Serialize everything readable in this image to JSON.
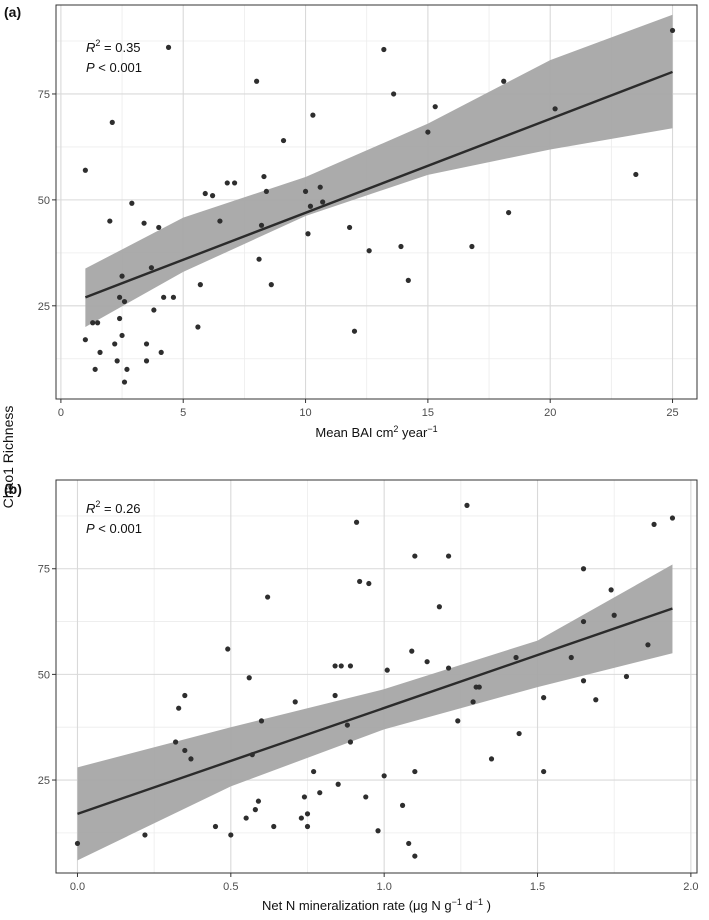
{
  "ylabel_shared": "Chao1 Richness",
  "colors": {
    "point": "#2e2e2e",
    "line": "#2b2b2b",
    "band": "#a6a6a6",
    "grid_major": "#d9d9d9",
    "grid_minor": "#ececec",
    "panel_border": "#333333"
  },
  "chart_data": [
    {
      "type": "scatter",
      "panel_label": "(a)",
      "stats": {
        "r2": "= 0.35",
        "p": "< 0.001",
        "r2_symbol": "R",
        "r2_sup": "2",
        "p_symbol": "P"
      },
      "xlabel": "Mean BAI cm",
      "xlabel_sup": "2",
      "xlabel_tail": " year",
      "xlabel_tail_sup": "−1",
      "xlim": [
        -0.2,
        26.0
      ],
      "ylim": [
        3,
        96
      ],
      "xticks": [
        0,
        5,
        10,
        15,
        20,
        25
      ],
      "xtick_labels": [
        "0",
        "5",
        "10",
        "15",
        "20",
        "25"
      ],
      "yticks": [
        25,
        50,
        75
      ],
      "ytick_labels": [
        "25",
        "50",
        "75"
      ],
      "fit": {
        "x0": 1.0,
        "y0": 27.0,
        "x1": 25.0,
        "y1": 80.2
      },
      "ci_band": [
        [
          1.0,
          20.0,
          33.8
        ],
        [
          5.0,
          33.0,
          45.8
        ],
        [
          10.0,
          46.2,
          55.4
        ],
        [
          15.0,
          55.9,
          68.0
        ],
        [
          20.0,
          61.9,
          83.0
        ],
        [
          25.0,
          66.9,
          93.7
        ]
      ],
      "points": [
        [
          1.0,
          57.0
        ],
        [
          1.0,
          17.0
        ],
        [
          1.3,
          21.0
        ],
        [
          1.4,
          10.0
        ],
        [
          1.5,
          21.0
        ],
        [
          1.6,
          14.0
        ],
        [
          2.0,
          45.0
        ],
        [
          2.1,
          68.3
        ],
        [
          2.2,
          16.0
        ],
        [
          2.3,
          12.0
        ],
        [
          2.4,
          22.0
        ],
        [
          2.4,
          27.0
        ],
        [
          2.5,
          32.0
        ],
        [
          2.5,
          18.0
        ],
        [
          2.6,
          26.0
        ],
        [
          2.6,
          7.0
        ],
        [
          2.7,
          10.0
        ],
        [
          2.9,
          49.2
        ],
        [
          3.4,
          44.5
        ],
        [
          3.5,
          16.0
        ],
        [
          3.5,
          12.0
        ],
        [
          3.7,
          34.0
        ],
        [
          3.8,
          24.0
        ],
        [
          4.0,
          43.5
        ],
        [
          4.1,
          14.0
        ],
        [
          4.2,
          27.0
        ],
        [
          4.4,
          86.0
        ],
        [
          4.6,
          27.0
        ],
        [
          5.6,
          20.0
        ],
        [
          5.7,
          30.0
        ],
        [
          5.9,
          51.5
        ],
        [
          6.2,
          51.0
        ],
        [
          6.5,
          45.0
        ],
        [
          6.8,
          54.0
        ],
        [
          7.1,
          54.0
        ],
        [
          8.0,
          78.0
        ],
        [
          8.1,
          36.0
        ],
        [
          8.2,
          44.0
        ],
        [
          8.3,
          55.5
        ],
        [
          8.4,
          52.0
        ],
        [
          8.6,
          30.0
        ],
        [
          9.1,
          64.0
        ],
        [
          10.0,
          52.0
        ],
        [
          10.1,
          42.0
        ],
        [
          10.2,
          48.5
        ],
        [
          10.3,
          70.0
        ],
        [
          10.6,
          53.0
        ],
        [
          10.7,
          49.5
        ],
        [
          11.8,
          43.5
        ],
        [
          12.0,
          19.0
        ],
        [
          12.6,
          38.0
        ],
        [
          13.2,
          85.5
        ],
        [
          13.6,
          75.0
        ],
        [
          13.9,
          39.0
        ],
        [
          14.2,
          31.0
        ],
        [
          15.0,
          66.0
        ],
        [
          15.3,
          72.0
        ],
        [
          16.8,
          39.0
        ],
        [
          18.1,
          78.0
        ],
        [
          18.3,
          47.0
        ],
        [
          20.2,
          71.5
        ],
        [
          23.5,
          56.0
        ],
        [
          25.0,
          90.0
        ]
      ]
    },
    {
      "type": "scatter",
      "panel_label": "(b)",
      "stats": {
        "r2": "= 0.26",
        "p": "< 0.001",
        "r2_symbol": "R",
        "r2_sup": "2",
        "p_symbol": "P"
      },
      "xlabel": "Net N mineralization rate (μg N g",
      "xlabel_sup": "−1",
      "xlabel_tail": " d",
      "xlabel_tail_sup": "−1",
      "xlabel_end": " )",
      "xlim": [
        -0.07,
        2.02
      ],
      "ylim": [
        3,
        96
      ],
      "xticks": [
        0.0,
        0.5,
        1.0,
        1.5,
        2.0
      ],
      "xtick_labels": [
        "0.0",
        "0.5",
        "1.0",
        "1.5",
        "2.0"
      ],
      "yticks": [
        25,
        50,
        75
      ],
      "ytick_labels": [
        "25",
        "50",
        "75"
      ],
      "fit": {
        "x0": 0.0,
        "y0": 17.0,
        "x1": 1.94,
        "y1": 65.6
      },
      "ci_band": [
        [
          0.0,
          6.0,
          28.0
        ],
        [
          0.5,
          23.5,
          37.5
        ],
        [
          1.0,
          37.0,
          46.5
        ],
        [
          1.5,
          47.0,
          58.0
        ],
        [
          1.94,
          55.0,
          76.0
        ]
      ],
      "points": [
        [
          0.0,
          10.0
        ],
        [
          0.22,
          12.0
        ],
        [
          0.32,
          34.0
        ],
        [
          0.33,
          42.0
        ],
        [
          0.35,
          45.0
        ],
        [
          0.35,
          32.0
        ],
        [
          0.37,
          30.0
        ],
        [
          0.45,
          14.0
        ],
        [
          0.49,
          56.0
        ],
        [
          0.5,
          12.0
        ],
        [
          0.55,
          16.0
        ],
        [
          0.56,
          49.2
        ],
        [
          0.57,
          31.0
        ],
        [
          0.58,
          18.0
        ],
        [
          0.59,
          20.0
        ],
        [
          0.6,
          39.0
        ],
        [
          0.62,
          68.3
        ],
        [
          0.64,
          14.0
        ],
        [
          0.71,
          43.5
        ],
        [
          0.73,
          16.0
        ],
        [
          0.74,
          21.0
        ],
        [
          0.75,
          14.0
        ],
        [
          0.75,
          17.0
        ],
        [
          0.77,
          27.0
        ],
        [
          0.79,
          22.0
        ],
        [
          0.84,
          52.0
        ],
        [
          0.84,
          45.0
        ],
        [
          0.85,
          24.0
        ],
        [
          0.86,
          52.0
        ],
        [
          0.88,
          38.0
        ],
        [
          0.89,
          52.0
        ],
        [
          0.89,
          34.0
        ],
        [
          0.91,
          86.0
        ],
        [
          0.92,
          72.0
        ],
        [
          0.94,
          21.0
        ],
        [
          0.95,
          71.5
        ],
        [
          0.98,
          13.0
        ],
        [
          1.0,
          26.0
        ],
        [
          1.01,
          51.0
        ],
        [
          1.06,
          19.0
        ],
        [
          1.08,
          10.0
        ],
        [
          1.09,
          55.5
        ],
        [
          1.1,
          7.0
        ],
        [
          1.1,
          27.0
        ],
        [
          1.1,
          78.0
        ],
        [
          1.14,
          53.0
        ],
        [
          1.18,
          66.0
        ],
        [
          1.21,
          51.5
        ],
        [
          1.21,
          78.0
        ],
        [
          1.24,
          39.0
        ],
        [
          1.27,
          90.0
        ],
        [
          1.29,
          43.5
        ],
        [
          1.3,
          47.0
        ],
        [
          1.31,
          47.0
        ],
        [
          1.35,
          30.0
        ],
        [
          1.43,
          54.0
        ],
        [
          1.44,
          36.0
        ],
        [
          1.52,
          27.0
        ],
        [
          1.52,
          44.5
        ],
        [
          1.61,
          54.0
        ],
        [
          1.65,
          75.0
        ],
        [
          1.65,
          62.5
        ],
        [
          1.65,
          48.5
        ],
        [
          1.69,
          44.0
        ],
        [
          1.74,
          70.0
        ],
        [
          1.75,
          64.0
        ],
        [
          1.79,
          49.5
        ],
        [
          1.86,
          57.0
        ],
        [
          1.88,
          85.5
        ],
        [
          1.94,
          87.0
        ]
      ]
    }
  ]
}
